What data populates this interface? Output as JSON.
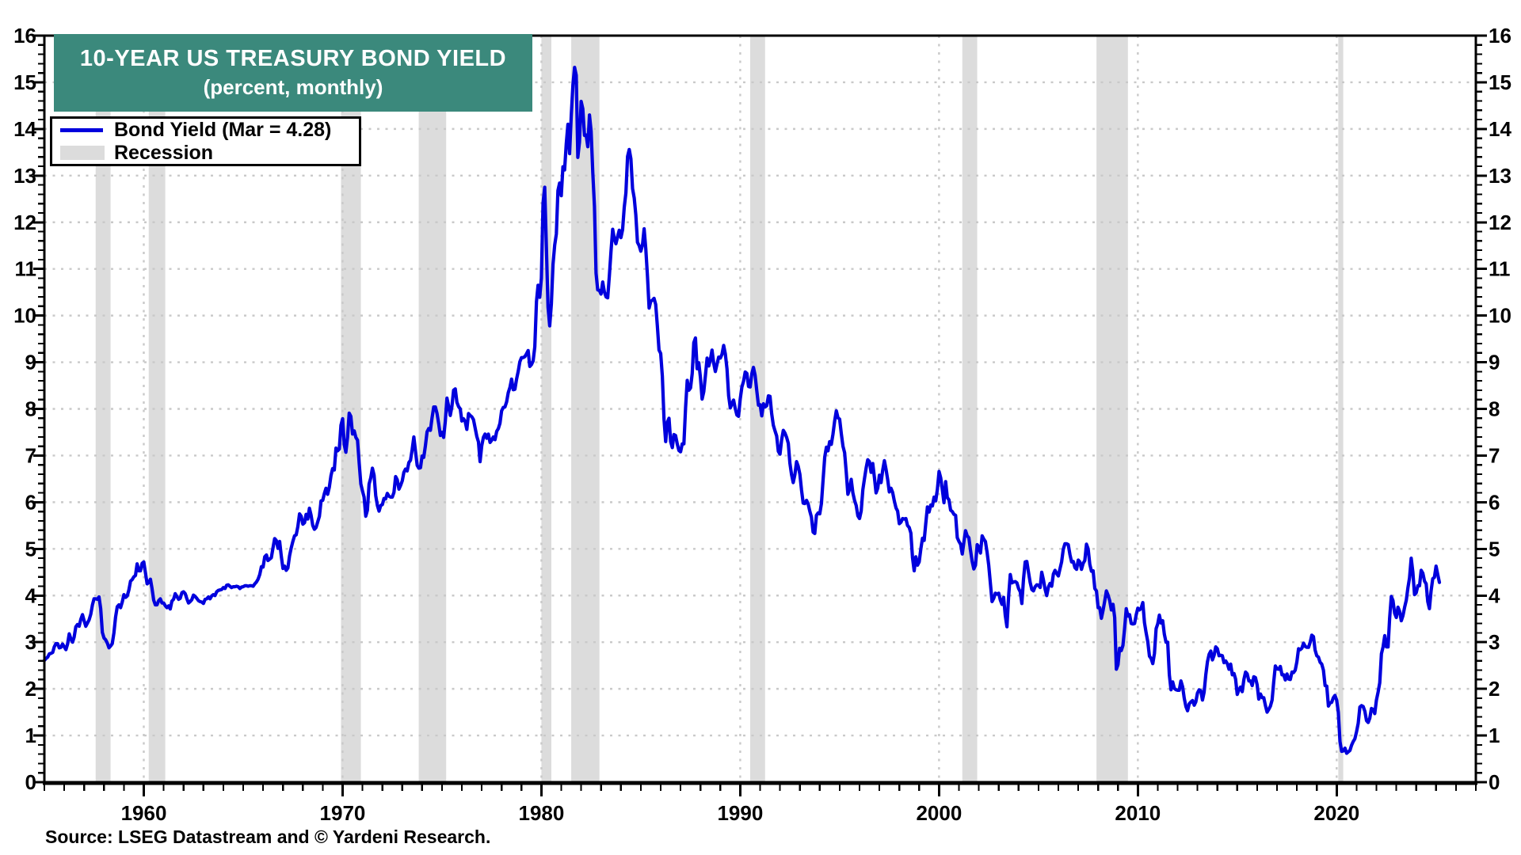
{
  "title": {
    "line1": "10-YEAR US TREASURY BOND YIELD",
    "line2": "(percent, monthly)"
  },
  "legend": {
    "bond_yield_label": "Bond Yield (Mar = 4.28)",
    "recession_label": "Recession",
    "position": "top-left"
  },
  "source": "Source: LSEG Datastream and © Yardeni Research.",
  "colors": {
    "line": "#0000DD",
    "recession": "#DCDCDC",
    "grid": "#C9C9C9",
    "title_bg": "#3B897C",
    "axis": "#000000",
    "text": "#000000"
  },
  "y_axis": {
    "min": 0,
    "max": 16,
    "major_step": 1,
    "minor_step": 0.2,
    "labels": [
      "0",
      "1",
      "2",
      "3",
      "4",
      "5",
      "6",
      "7",
      "8",
      "9",
      "10",
      "11",
      "12",
      "13",
      "14",
      "15",
      "16"
    ],
    "sides": "both"
  },
  "x_axis": {
    "min": 1955,
    "max": 2027,
    "minor_step": 1,
    "tick_years": [
      1960,
      1970,
      1980,
      1990,
      2000,
      2010,
      2020
    ],
    "labels": [
      "1960",
      "1970",
      "1980",
      "1990",
      "2000",
      "2010",
      "2020"
    ]
  },
  "chart_data": {
    "type": "line",
    "title": "10-YEAR US TREASURY BOND YIELD",
    "subtitle": "(percent, monthly)",
    "xlabel": "",
    "ylabel": "percent",
    "xlim": [
      1955,
      2027
    ],
    "ylim": [
      0,
      16
    ],
    "grid": "dotted horizontal at integers 1-15, dotted vertical at decades",
    "legend_position": "top-left",
    "recession_label": "Recession",
    "recessions": [
      [
        1957.58,
        1958.33
      ],
      [
        1960.25,
        1961.08
      ],
      [
        1969.92,
        1970.92
      ],
      [
        1973.83,
        1975.21
      ],
      [
        1980.0,
        1980.5
      ],
      [
        1981.5,
        1982.92
      ],
      [
        1990.5,
        1991.25
      ],
      [
        2001.17,
        2001.92
      ],
      [
        2007.92,
        2009.5
      ],
      [
        2020.08,
        2020.33
      ]
    ],
    "series": [
      {
        "name": "Bond Yield (Mar = 4.28)",
        "start": "1955-01",
        "end": "2025-03",
        "frequency": "monthly",
        "last_point": {
          "label": "Mar",
          "value": 4.28
        },
        "values": [
          2.61,
          2.65,
          2.68,
          2.75,
          2.76,
          2.78,
          2.9,
          2.97,
          2.97,
          2.88,
          2.89,
          2.96,
          2.9,
          2.84,
          2.96,
          3.18,
          3.07,
          3.0,
          3.11,
          3.33,
          3.38,
          3.34,
          3.49,
          3.59,
          3.46,
          3.34,
          3.41,
          3.48,
          3.6,
          3.8,
          3.93,
          3.93,
          3.92,
          3.97,
          3.72,
          3.21,
          3.09,
          3.05,
          2.98,
          2.88,
          2.92,
          2.97,
          3.2,
          3.54,
          3.76,
          3.8,
          3.74,
          3.86,
          4.02,
          3.96,
          3.99,
          4.12,
          4.31,
          4.34,
          4.4,
          4.43,
          4.68,
          4.53,
          4.53,
          4.69,
          4.72,
          4.49,
          4.25,
          4.28,
          4.35,
          4.15,
          3.9,
          3.8,
          3.8,
          3.89,
          3.93,
          3.84,
          3.84,
          3.78,
          3.74,
          3.78,
          3.71,
          3.88,
          3.92,
          4.04,
          3.98,
          3.92,
          3.94,
          4.06,
          4.08,
          4.04,
          3.93,
          3.84,
          3.87,
          3.91,
          4.01,
          3.98,
          3.94,
          3.89,
          3.87,
          3.86,
          3.83,
          3.92,
          3.93,
          3.97,
          3.93,
          3.99,
          4.02,
          4.0,
          4.08,
          4.11,
          4.12,
          4.13,
          4.17,
          4.15,
          4.22,
          4.23,
          4.2,
          4.17,
          4.19,
          4.19,
          4.2,
          4.19,
          4.15,
          4.18,
          4.19,
          4.21,
          4.21,
          4.2,
          4.21,
          4.21,
          4.2,
          4.25,
          4.29,
          4.35,
          4.45,
          4.62,
          4.61,
          4.83,
          4.87,
          4.75,
          4.78,
          4.81,
          5.02,
          5.22,
          5.18,
          5.01,
          5.16,
          4.84,
          4.58,
          4.63,
          4.54,
          4.59,
          4.85,
          5.02,
          5.16,
          5.28,
          5.3,
          5.48,
          5.75,
          5.7,
          5.53,
          5.56,
          5.74,
          5.64,
          5.87,
          5.72,
          5.5,
          5.42,
          5.46,
          5.58,
          5.7,
          6.03,
          6.04,
          6.19,
          6.3,
          6.17,
          6.32,
          6.57,
          6.72,
          6.69,
          7.16,
          7.1,
          7.14,
          7.65,
          7.79,
          7.24,
          7.07,
          7.39,
          7.91,
          7.84,
          7.46,
          7.53,
          7.39,
          7.33,
          6.84,
          6.39,
          6.24,
          6.11,
          5.7,
          5.83,
          6.39,
          6.52,
          6.73,
          6.58,
          6.14,
          5.93,
          5.81,
          5.93,
          5.95,
          6.08,
          6.07,
          6.19,
          6.13,
          6.11,
          6.11,
          6.21,
          6.55,
          6.48,
          6.28,
          6.36,
          6.46,
          6.64,
          6.71,
          6.67,
          6.85,
          6.9,
          7.13,
          7.4,
          7.09,
          6.79,
          6.73,
          6.74,
          6.99,
          6.96,
          7.21,
          7.51,
          7.58,
          7.54,
          7.81,
          8.04,
          8.04,
          7.9,
          7.68,
          7.43,
          7.5,
          7.39,
          7.73,
          8.23,
          8.06,
          7.86,
          8.06,
          8.4,
          8.43,
          8.14,
          8.05,
          8.0,
          7.74,
          7.79,
          7.73,
          7.56,
          7.9,
          7.86,
          7.83,
          7.77,
          7.59,
          7.41,
          7.29,
          6.87,
          7.21,
          7.39,
          7.46,
          7.37,
          7.46,
          7.28,
          7.33,
          7.4,
          7.34,
          7.52,
          7.58,
          7.69,
          7.96,
          8.03,
          8.04,
          8.15,
          8.35,
          8.46,
          8.64,
          8.41,
          8.42,
          8.64,
          8.81,
          9.01,
          9.1,
          9.1,
          9.12,
          9.18,
          9.25,
          8.91,
          8.95,
          9.03,
          9.33,
          10.3,
          10.65,
          10.39,
          10.8,
          12.41,
          12.75,
          11.47,
          10.18,
          9.78,
          10.25,
          11.1,
          11.51,
          11.75,
          12.68,
          12.84,
          12.57,
          13.19,
          13.12,
          13.68,
          14.1,
          13.47,
          14.28,
          14.94,
          15.32,
          15.15,
          13.39,
          13.72,
          14.59,
          14.43,
          13.86,
          13.87,
          13.62,
          14.3,
          13.95,
          13.06,
          12.34,
          10.91,
          10.55,
          10.54,
          10.46,
          10.72,
          10.51,
          10.4,
          10.38,
          10.85,
          11.38,
          11.85,
          11.65,
          11.54,
          11.69,
          11.83,
          11.67,
          11.84,
          12.32,
          12.63,
          13.41,
          13.56,
          13.36,
          12.72,
          12.52,
          12.16,
          11.57,
          11.5,
          11.38,
          11.51,
          11.86,
          11.43,
          10.85,
          10.16,
          10.31,
          10.33,
          10.37,
          10.24,
          9.78,
          9.26,
          9.19,
          8.7,
          7.78,
          7.3,
          7.71,
          7.8,
          7.3,
          7.17,
          7.45,
          7.43,
          7.25,
          7.11,
          7.08,
          7.25,
          7.25,
          8.02,
          8.61,
          8.4,
          8.45,
          8.76,
          9.42,
          9.52,
          8.86,
          8.99,
          8.67,
          8.21,
          8.37,
          8.72,
          9.09,
          8.92,
          9.06,
          9.26,
          8.98,
          8.8,
          8.96,
          9.11,
          9.09,
          9.17,
          9.36,
          9.18,
          8.86,
          8.28,
          8.02,
          8.11,
          8.19,
          8.01,
          7.87,
          7.84,
          8.21,
          8.47,
          8.59,
          8.79,
          8.76,
          8.48,
          8.47,
          8.75,
          8.89,
          8.72,
          8.39,
          8.08,
          8.09,
          7.85,
          8.11,
          8.04,
          8.07,
          8.28,
          8.27,
          7.9,
          7.65,
          7.53,
          7.42,
          7.09,
          7.03,
          7.34,
          7.54,
          7.48,
          7.39,
          7.26,
          6.84,
          6.59,
          6.42,
          6.59,
          6.87,
          6.77,
          6.6,
          6.26,
          5.98,
          5.97,
          6.04,
          5.96,
          5.81,
          5.68,
          5.36,
          5.33,
          5.72,
          5.77,
          5.75,
          5.97,
          6.48,
          6.97,
          7.18,
          7.1,
          7.3,
          7.24,
          7.46,
          7.74,
          7.96,
          7.81,
          7.78,
          7.47,
          7.2,
          7.06,
          6.63,
          6.17,
          6.28,
          6.49,
          6.2,
          6.04,
          5.93,
          5.71,
          5.65,
          5.81,
          6.27,
          6.51,
          6.74,
          6.91,
          6.87,
          6.64,
          6.83,
          6.53,
          6.2,
          6.3,
          6.58,
          6.42,
          6.69,
          6.89,
          6.71,
          6.49,
          6.22,
          6.3,
          6.21,
          6.03,
          5.88,
          5.81,
          5.54,
          5.57,
          5.65,
          5.64,
          5.65,
          5.5,
          5.46,
          5.34,
          4.81,
          4.53,
          4.83,
          4.65,
          4.72,
          5.0,
          5.23,
          5.18,
          5.54,
          5.9,
          5.79,
          5.94,
          5.92,
          6.11,
          6.03,
          6.28,
          6.66,
          6.52,
          6.26,
          5.99,
          6.44,
          6.1,
          6.05,
          5.83,
          5.8,
          5.74,
          5.72,
          5.24,
          5.16,
          5.1,
          4.89,
          5.14,
          5.39,
          5.28,
          5.24,
          4.97,
          4.73,
          4.57,
          4.65,
          5.09,
          5.04,
          4.91,
          5.28,
          5.21,
          5.16,
          4.93,
          4.65,
          4.26,
          3.87,
          3.94,
          4.05,
          4.03,
          4.05,
          3.9,
          3.81,
          3.96,
          3.57,
          3.33,
          3.98,
          4.45,
          4.27,
          4.29,
          4.3,
          4.27,
          4.15,
          4.08,
          3.83,
          4.35,
          4.72,
          4.73,
          4.5,
          4.28,
          4.13,
          4.1,
          4.19,
          4.23,
          4.22,
          4.17,
          4.5,
          4.34,
          4.14,
          4.0,
          4.18,
          4.26,
          4.2,
          4.46,
          4.54,
          4.47,
          4.42,
          4.57,
          4.72,
          4.99,
          5.11,
          5.11,
          5.09,
          4.88,
          4.72,
          4.73,
          4.6,
          4.56,
          4.76,
          4.72,
          4.56,
          4.69,
          4.75,
          5.1,
          5.0,
          4.67,
          4.52,
          4.53,
          4.15,
          4.1,
          3.74,
          3.74,
          3.51,
          3.68,
          3.88,
          4.1,
          4.01,
          3.89,
          3.69,
          3.81,
          3.53,
          2.42,
          2.52,
          2.87,
          2.82,
          2.93,
          3.29,
          3.72,
          3.56,
          3.59,
          3.4,
          3.39,
          3.4,
          3.59,
          3.73,
          3.69,
          3.73,
          3.85,
          3.42,
          3.2,
          3.01,
          2.7,
          2.65,
          2.54,
          2.76,
          3.29,
          3.39,
          3.58,
          3.41,
          3.46,
          3.17,
          3.0,
          3.0,
          2.3,
          1.98,
          2.15,
          2.01,
          1.98,
          1.97,
          1.97,
          2.17,
          2.05,
          1.8,
          1.62,
          1.53,
          1.68,
          1.72,
          1.75,
          1.65,
          1.72,
          1.91,
          1.98,
          1.96,
          1.76,
          1.93,
          2.3,
          2.58,
          2.74,
          2.81,
          2.62,
          2.72,
          2.9,
          2.86,
          2.71,
          2.72,
          2.71,
          2.56,
          2.6,
          2.54,
          2.42,
          2.53,
          2.3,
          2.33,
          2.21,
          1.88,
          1.98,
          2.04,
          1.94,
          2.2,
          2.36,
          2.32,
          2.17,
          2.17,
          2.07,
          2.26,
          2.24,
          2.09,
          1.78,
          1.89,
          1.81,
          1.81,
          1.64,
          1.5,
          1.56,
          1.63,
          1.76,
          2.14,
          2.49,
          2.43,
          2.42,
          2.48,
          2.3,
          2.3,
          2.19,
          2.32,
          2.21,
          2.2,
          2.36,
          2.35,
          2.4,
          2.58,
          2.86,
          2.84,
          2.87,
          2.98,
          2.91,
          2.89,
          2.89,
          3.0,
          3.15,
          3.12,
          2.83,
          2.71,
          2.68,
          2.57,
          2.53,
          2.4,
          2.07,
          2.06,
          1.63,
          1.7,
          1.71,
          1.81,
          1.86,
          1.76,
          1.5,
          0.87,
          0.66,
          0.67,
          0.73,
          0.62,
          0.65,
          0.68,
          0.79,
          0.87,
          0.93,
          1.08,
          1.26,
          1.61,
          1.64,
          1.62,
          1.52,
          1.32,
          1.28,
          1.37,
          1.58,
          1.56,
          1.47,
          1.76,
          1.93,
          2.13,
          2.75,
          2.9,
          3.14,
          2.9,
          2.9,
          3.52,
          3.98,
          3.89,
          3.62,
          3.53,
          3.75,
          3.66,
          3.46,
          3.57,
          3.75,
          3.9,
          4.17,
          4.38,
          4.8,
          4.5,
          4.02,
          4.06,
          4.21,
          4.21,
          4.54,
          4.48,
          4.31,
          4.25,
          3.87,
          3.72,
          4.1,
          4.36,
          4.39,
          4.63,
          4.45,
          4.28
        ]
      }
    ]
  }
}
